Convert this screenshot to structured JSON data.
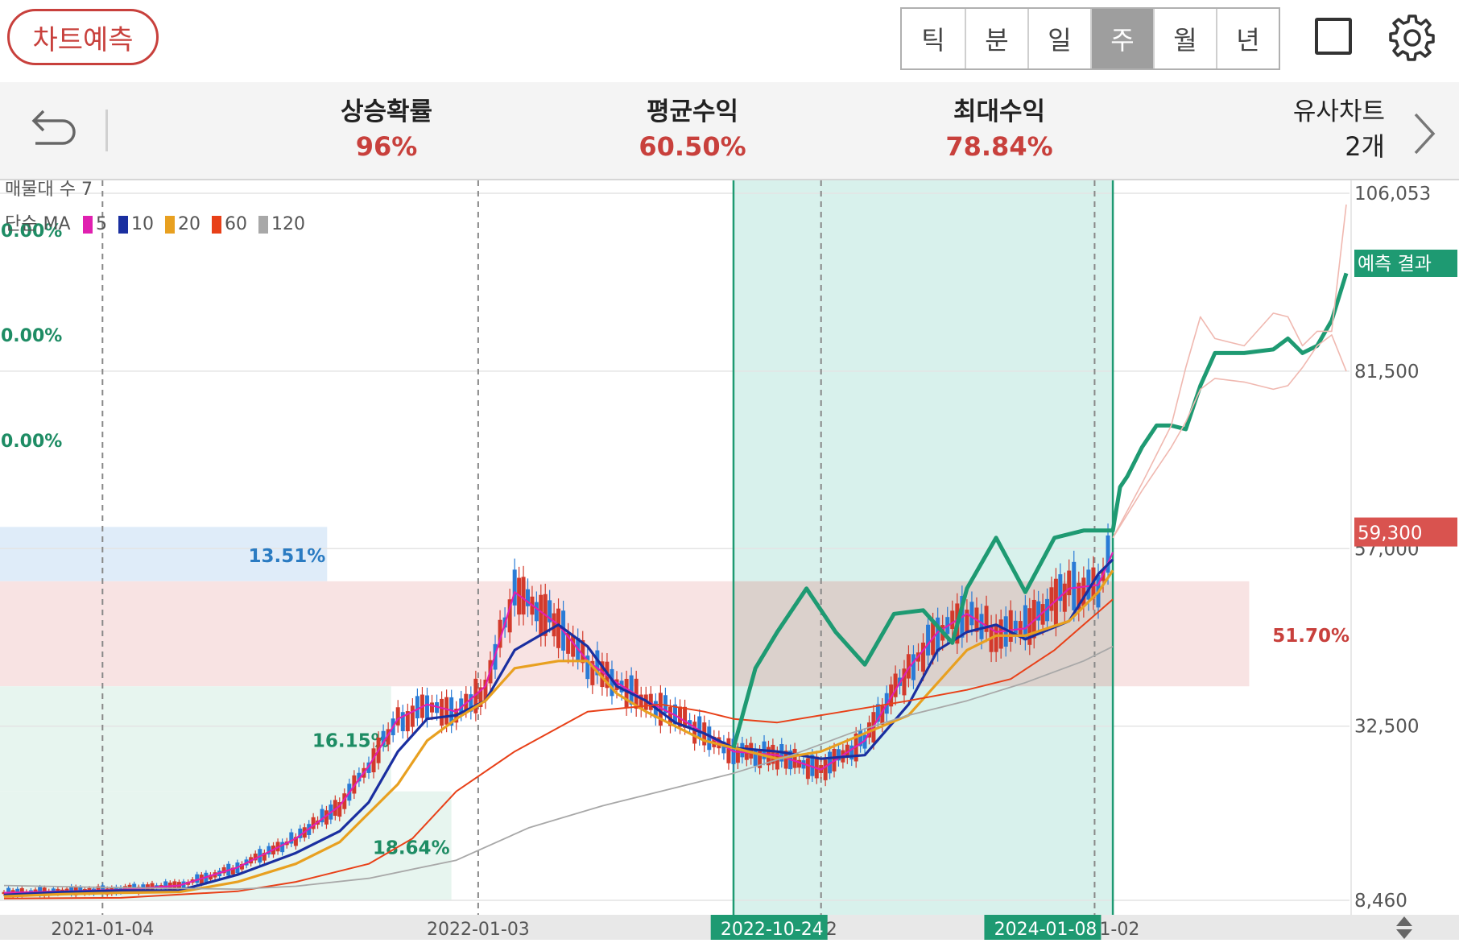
{
  "header": {
    "predict_button": "차트예측",
    "periods": [
      "틱",
      "분",
      "일",
      "주",
      "월",
      "년"
    ],
    "active_period": "주",
    "icons": {
      "square": "square-icon",
      "settings": "gear-icon"
    }
  },
  "stats": {
    "back_icon": "undo-arrow-icon",
    "rise_probability": {
      "label": "상승확률",
      "value": "96%"
    },
    "average_return": {
      "label": "평균수익",
      "value": "60.50%"
    },
    "max_return": {
      "label": "최대수익",
      "value": "78.84%"
    },
    "similar_charts": {
      "label": "유사차트",
      "value": "2개"
    },
    "next_icon": "chevron-right-icon"
  },
  "chart_data": {
    "type": "line",
    "legend": {
      "volume_profile_label": "매물대 수 7",
      "ma_label": "단순 MA",
      "ma_periods": [
        "5",
        "10",
        "20",
        "60",
        "120"
      ],
      "ma_colors": [
        "#e020b0",
        "#1a2fa0",
        "#e8a020",
        "#e84018",
        "#a8a8a8"
      ]
    },
    "y_axis": {
      "tick_labels": [
        "106,053",
        "81,500",
        "57,000",
        "32,500",
        "8,460"
      ],
      "tick_values": [
        106053,
        81500,
        57000,
        32500,
        8460
      ],
      "current_price": "59,300",
      "prediction_label": "예측 결과"
    },
    "x_axis": {
      "tick_labels": [
        "2021-01-04",
        "2022-01-03",
        "2022-10-24",
        "2024-01-08"
      ],
      "partial_labels": [
        "2",
        "1-02"
      ],
      "highlighted": [
        "2022-10-24",
        "2024-01-08"
      ]
    },
    "left_percent_labels": [
      "0.00%",
      "0.00%",
      "0.00%"
    ],
    "volume_profile": [
      {
        "label": "",
        "low": 81500,
        "high": 106053,
        "fraction": 0
      },
      {
        "label": "",
        "low": 67000,
        "high": 81500,
        "fraction": 0
      },
      {
        "label": "",
        "low": 60000,
        "high": 67000,
        "fraction": 0
      },
      {
        "label": "13.51%",
        "low": 52500,
        "high": 60000,
        "fraction": 0.2424,
        "color": "#d9e9f8",
        "text_color": "#2a7bc2"
      },
      {
        "label": "51.70%",
        "low": 38000,
        "high": 52500,
        "fraction": 0.9257,
        "color": "#f7dede",
        "text_color": "#c8403c"
      },
      {
        "label": "16.15%",
        "low": 23500,
        "high": 38000,
        "fraction": 0.2898,
        "color": "#e3f3ec",
        "text_color": "#1e8c64"
      },
      {
        "label": "18.64%",
        "low": 8460,
        "high": 23500,
        "fraction": 0.3345,
        "color": "#e3f3ec",
        "text_color": "#1e8c64"
      }
    ],
    "series": [
      {
        "name": "5",
        "color": "#e020b0",
        "x": [
          0,
          8,
          16,
          24,
          32,
          40,
          46,
          50,
          54,
          58,
          62,
          66,
          70,
          76,
          80,
          84,
          88,
          92,
          96,
          100,
          106,
          112,
          118,
          124,
          128,
          132,
          136,
          140,
          146,
          150,
          152
        ],
        "y": [
          9500,
          9700,
          9900,
          10500,
          13000,
          17000,
          21500,
          27000,
          33500,
          35500,
          34500,
          38000,
          51000,
          46500,
          41500,
          38500,
          36000,
          34000,
          31500,
          29000,
          28500,
          26500,
          30500,
          40500,
          45500,
          48000,
          45500,
          46000,
          51500,
          52000,
          56500
        ]
      },
      {
        "name": "10",
        "color": "#1a2fa0",
        "x": [
          0,
          8,
          16,
          24,
          32,
          40,
          46,
          50,
          54,
          58,
          62,
          66,
          70,
          76,
          80,
          84,
          88,
          92,
          96,
          100,
          106,
          112,
          118,
          124,
          128,
          132,
          136,
          140,
          146,
          150,
          152
        ],
        "y": [
          9200,
          9600,
          9800,
          9800,
          12000,
          15000,
          18000,
          22000,
          29000,
          33500,
          34000,
          36000,
          43000,
          46500,
          43500,
          38000,
          36000,
          33000,
          31500,
          29500,
          29000,
          28000,
          28500,
          35500,
          43000,
          45500,
          46500,
          44500,
          47000,
          53500,
          55500
        ]
      },
      {
        "name": "20",
        "color": "#e8a020",
        "x": [
          0,
          8,
          16,
          24,
          32,
          40,
          46,
          50,
          54,
          58,
          62,
          66,
          70,
          76,
          80,
          84,
          88,
          92,
          96,
          100,
          106,
          112,
          118,
          124,
          128,
          132,
          136,
          140,
          146,
          150,
          152
        ],
        "y": [
          9000,
          9300,
          9500,
          9600,
          11000,
          13500,
          16500,
          20500,
          24500,
          30500,
          33500,
          36000,
          40500,
          41500,
          41500,
          37000,
          34500,
          32500,
          30500,
          29500,
          28000,
          29000,
          31500,
          34000,
          38500,
          43000,
          45000,
          45000,
          47000,
          51000,
          54000
        ]
      },
      {
        "name": "60",
        "color": "#e84018",
        "x": [
          0,
          16,
          32,
          40,
          50,
          56,
          62,
          70,
          80,
          90,
          96,
          100,
          106,
          112,
          118,
          124,
          132,
          138,
          144,
          148,
          152
        ],
        "y": [
          8700,
          8800,
          9700,
          11000,
          13500,
          17000,
          23500,
          29000,
          34500,
          35500,
          34500,
          33500,
          33000,
          34000,
          35000,
          36000,
          37500,
          39000,
          43000,
          46500,
          50000
        ]
      },
      {
        "name": "120",
        "color": "#a8a8a8",
        "x": [
          0,
          16,
          32,
          40,
          50,
          62,
          72,
          82,
          92,
          100,
          108,
          116,
          124,
          132,
          140,
          148,
          152
        ],
        "y": [
          10500,
          10200,
          10000,
          10400,
          11500,
          14000,
          18500,
          21500,
          24000,
          26000,
          28500,
          31500,
          34000,
          36000,
          38500,
          41500,
          43500
        ]
      },
      {
        "name": "",
        "color": "#1e9a72",
        "x": [
          100,
          103,
          106,
          110,
          114,
          118,
          122,
          126,
          130,
          132,
          136,
          140,
          144,
          148,
          152,
          153,
          154,
          156,
          158,
          160,
          162,
          164,
          166,
          170,
          174,
          176,
          178,
          180,
          182,
          184
        ],
        "y": [
          29500,
          40500,
          45500,
          51500,
          45500,
          41000,
          48000,
          48500,
          44000,
          51500,
          58500,
          51000,
          58500,
          59500,
          59500,
          65500,
          67000,
          71000,
          74000,
          74000,
          73500,
          79500,
          84000,
          84000,
          84500,
          86000,
          84000,
          85000,
          88500,
          95000
        ]
      },
      {
        "name": "",
        "color": "#f0b8b0",
        "x": [
          152,
          156,
          160,
          162,
          164,
          166,
          170,
          174,
          176,
          178,
          180,
          182,
          184
        ],
        "y": [
          58500,
          66000,
          74000,
          82000,
          89000,
          86000,
          85000,
          89500,
          89000,
          85000,
          87000,
          87000,
          104500
        ]
      },
      {
        "name": "",
        "color": "#f0b8b0",
        "x": [
          152,
          156,
          160,
          162,
          164,
          166,
          170,
          174,
          176,
          178,
          180,
          182,
          184
        ],
        "y": [
          58500,
          65000,
          71000,
          74500,
          79000,
          80500,
          80000,
          79000,
          79500,
          82000,
          85000,
          86500,
          81500
        ]
      }
    ]
  }
}
